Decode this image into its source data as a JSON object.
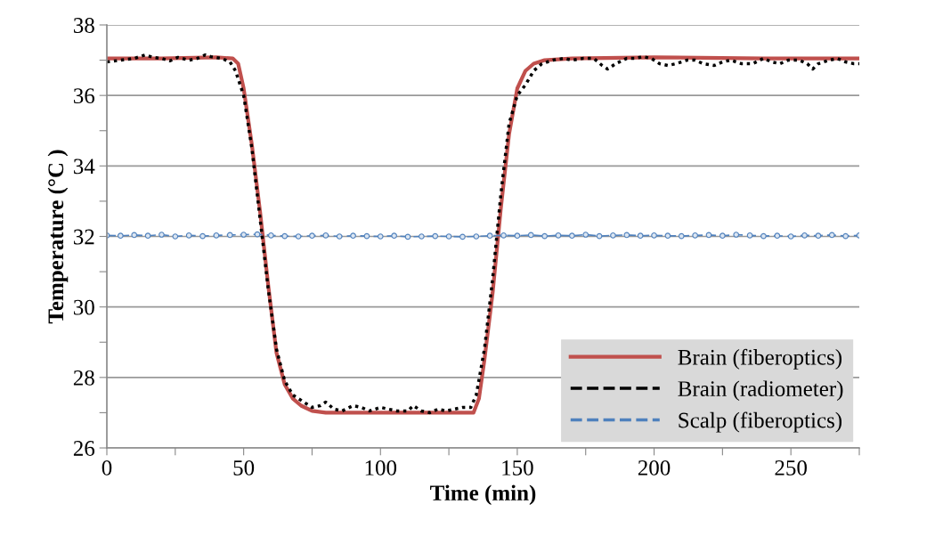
{
  "chart_data": {
    "type": "line",
    "xlabel": "Time (min)",
    "ylabel": "Temperature (°C )",
    "xlim": [
      0,
      275
    ],
    "ylim": [
      26,
      38
    ],
    "xticks": [
      0,
      {
        "value": 25,
        "label": null
      },
      50,
      {
        "value": 75,
        "label": null
      },
      100,
      {
        "value": 125,
        "label": null
      },
      150,
      {
        "value": 175,
        "label": null
      },
      200,
      {
        "value": 225,
        "label": null
      },
      250,
      {
        "value": 275,
        "label": null
      }
    ],
    "yticks": [
      26,
      {
        "value": 27,
        "label": null
      },
      28,
      {
        "value": 29,
        "label": null
      },
      30,
      {
        "value": 31,
        "label": null
      },
      32,
      {
        "value": 33,
        "label": null
      },
      34,
      {
        "value": 35,
        "label": null
      },
      36,
      {
        "value": 37,
        "label": null
      },
      38
    ],
    "grid": "y",
    "legend": "bottom right",
    "series": [
      {
        "name": "Brain (fiberoptics)",
        "color": "#c0504d",
        "line_style": "solid",
        "marker": "none",
        "x": [
          0,
          20,
          40,
          46,
          48,
          50,
          53,
          56,
          59,
          62,
          65,
          68,
          71,
          75,
          80,
          100,
          120,
          134,
          136,
          138,
          141,
          144,
          147,
          150,
          153,
          156,
          160,
          170,
          200,
          240,
          275
        ],
        "values": [
          37.05,
          37.05,
          37.08,
          37.05,
          36.9,
          36.2,
          34.6,
          32.7,
          30.6,
          28.7,
          27.8,
          27.4,
          27.2,
          27.05,
          27.0,
          27.0,
          27.0,
          27.0,
          27.4,
          28.5,
          30.4,
          32.8,
          34.9,
          36.2,
          36.7,
          36.9,
          37.0,
          37.05,
          37.08,
          37.05,
          37.05
        ]
      },
      {
        "name": "Brain (radiometer)",
        "color": "#000000",
        "line_style": "dotted",
        "marker": "none",
        "x": [
          0,
          5,
          10,
          14,
          17,
          20,
          23,
          26,
          30,
          33,
          36,
          38,
          42,
          45,
          47,
          50,
          53,
          56,
          59,
          62,
          65,
          68,
          72,
          75,
          78,
          80,
          83,
          86,
          90,
          93,
          96,
          100,
          103,
          106,
          110,
          112,
          115,
          118,
          121,
          124,
          127,
          130,
          133,
          135,
          138,
          141,
          144,
          147,
          150,
          153,
          156,
          159,
          163,
          167,
          170,
          174,
          178,
          181,
          183,
          186,
          190,
          193,
          196,
          199,
          202,
          205,
          208,
          212,
          215,
          218,
          222,
          225,
          228,
          232,
          236,
          240,
          243,
          246,
          249,
          253,
          256,
          258,
          260,
          264,
          267,
          270,
          273,
          275
        ],
        "values": [
          36.95,
          37.0,
          37.05,
          37.15,
          37.08,
          37.05,
          36.98,
          37.08,
          37.0,
          37.05,
          37.15,
          37.1,
          37.05,
          36.95,
          36.7,
          36.0,
          34.5,
          32.5,
          30.5,
          28.8,
          27.9,
          27.5,
          27.3,
          27.15,
          27.2,
          27.3,
          27.1,
          27.05,
          27.2,
          27.15,
          27.05,
          27.15,
          27.1,
          27.05,
          27.05,
          27.2,
          27.05,
          27.0,
          27.1,
          27.05,
          27.1,
          27.15,
          27.15,
          27.5,
          28.8,
          30.8,
          33.2,
          35.2,
          36.0,
          36.3,
          36.7,
          36.9,
          37.0,
          37.05,
          37.0,
          37.05,
          37.05,
          36.85,
          36.75,
          36.9,
          37.05,
          37.05,
          37.1,
          37.05,
          36.9,
          36.85,
          36.9,
          37.0,
          37.0,
          36.9,
          36.85,
          36.95,
          37.0,
          36.9,
          36.9,
          37.05,
          36.95,
          36.9,
          37.0,
          37.0,
          36.9,
          36.75,
          36.9,
          37.0,
          37.05,
          36.95,
          36.9,
          36.9
        ]
      },
      {
        "name": "Scalp (fiberoptics)",
        "color": "#4f81bd",
        "line_style": "dashed",
        "marker": "circle",
        "x": [
          0,
          5,
          10,
          15,
          20,
          25,
          30,
          35,
          40,
          45,
          50,
          55,
          60,
          65,
          70,
          75,
          80,
          85,
          90,
          95,
          100,
          105,
          110,
          115,
          120,
          125,
          130,
          135,
          140,
          145,
          150,
          155,
          160,
          165,
          170,
          175,
          180,
          185,
          190,
          195,
          200,
          205,
          210,
          215,
          220,
          225,
          230,
          235,
          240,
          245,
          250,
          255,
          260,
          265,
          270,
          275
        ],
        "values": [
          32.03,
          32.02,
          32.04,
          32.02,
          32.05,
          32.0,
          32.03,
          32.01,
          32.03,
          32.04,
          32.05,
          32.06,
          32.03,
          32.01,
          32.0,
          32.02,
          32.03,
          32.0,
          32.02,
          32.01,
          32.0,
          32.02,
          31.99,
          32.0,
          32.01,
          32.0,
          31.99,
          32.0,
          32.02,
          32.03,
          32.02,
          32.04,
          32.01,
          32.03,
          32.02,
          32.05,
          32.01,
          32.03,
          32.04,
          32.02,
          32.03,
          32.02,
          32.01,
          32.03,
          32.04,
          32.02,
          32.05,
          32.03,
          32.01,
          32.02,
          32.0,
          32.03,
          32.02,
          32.04,
          32.01,
          32.03
        ]
      }
    ]
  }
}
